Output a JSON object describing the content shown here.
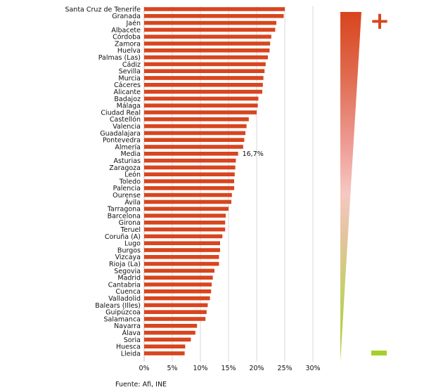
{
  "chart_data": {
    "type": "bar",
    "orientation": "horizontal",
    "title": "",
    "xlabel": "",
    "ylabel": "",
    "xlim": [
      0,
      30
    ],
    "x_ticks": [
      0,
      5,
      10,
      15,
      20,
      25,
      30
    ],
    "x_tick_labels": [
      "0%",
      "5%",
      "10%",
      "15%",
      "20%",
      "25%",
      "30%"
    ],
    "bar_color": "#d8451e",
    "categories": [
      "Santa Cruz de Tenerife",
      "Granada",
      "Jaén",
      "Albacete",
      "Córdoba",
      "Zamora",
      "Huelva",
      "Palmas (Las)",
      "Cádiz",
      "Sevilla",
      "Murcia",
      "Cáceres",
      "Alicante",
      "Badajoz",
      "Málaga",
      "Ciudad Real",
      "Castellón",
      "Valencia",
      "Guadalajara",
      "Pontevedra",
      "Almería",
      "Media",
      "Asturias",
      "Zaragoza",
      "León",
      "Toledo",
      "Palencia",
      "Ourense",
      "Ávila",
      "Tarragona",
      "Barcelona",
      "Girona",
      "Teruel",
      "Coruña (A)",
      "Lugo",
      "Burgos",
      "Vizcaya",
      "Rioja (La)",
      "Segovia",
      "Madrid",
      "Cantabria",
      "Cuenca",
      "Valladolid",
      "Balears (Illes)",
      "Guipúzcoa",
      "Salamanca",
      "Navarra",
      "Álava",
      "Soria",
      "Huesca",
      "Lleida"
    ],
    "values": [
      25.0,
      24.8,
      23.5,
      23.3,
      22.6,
      22.4,
      22.3,
      22.0,
      21.6,
      21.4,
      21.2,
      21.1,
      21.0,
      20.3,
      20.2,
      20.0,
      18.6,
      18.2,
      18.0,
      17.8,
      17.6,
      16.7,
      16.3,
      16.2,
      16.1,
      16.0,
      16.0,
      15.6,
      15.5,
      15.0,
      14.5,
      14.4,
      14.4,
      13.9,
      13.5,
      13.5,
      13.3,
      13.3,
      12.5,
      12.2,
      12.0,
      11.9,
      11.7,
      11.3,
      11.1,
      10.9,
      9.4,
      9.1,
      8.3,
      7.3,
      7.2
    ],
    "annotations": [
      {
        "category": "Media",
        "text": "16,7%"
      }
    ],
    "scale_legend": {
      "top_symbol": "+",
      "bottom_symbol": "−",
      "top_color": "#d8451e",
      "mid_color": "#f6c8c2",
      "bottom_color": "#a5cf2b"
    }
  },
  "source_text": "Fuente: Afi, INE"
}
